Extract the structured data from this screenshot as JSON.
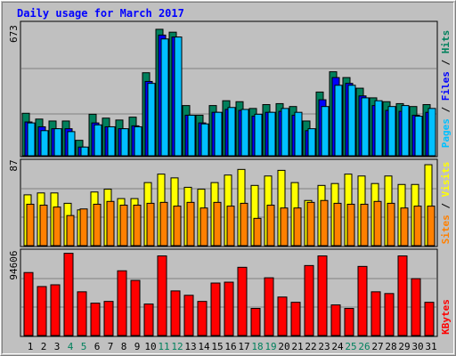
{
  "title": "Daily usage for March 2017",
  "panels": {
    "top": {
      "max_label": "673",
      "legend": [
        "Pages",
        "Files",
        "Hits"
      ]
    },
    "middle": {
      "max_label": "87",
      "legend": [
        "Sites",
        "Visits"
      ]
    },
    "bottom": {
      "max_label": "94606",
      "legend": [
        "KBytes"
      ]
    }
  },
  "colors": {
    "background": "#C0C0C0",
    "title": "#0000FF",
    "hits": "#00805C",
    "files": "#0000FF",
    "pages": "#00C0FF",
    "visits": "#FFFF00",
    "sites": "#FF8000",
    "kbytes": "#FF0000",
    "weekend_label": "#00805C"
  },
  "chart_data": [
    {
      "type": "bar",
      "categories": [
        "1",
        "2",
        "3",
        "4",
        "5",
        "6",
        "7",
        "8",
        "9",
        "10",
        "11",
        "12",
        "13",
        "14",
        "15",
        "16",
        "17",
        "18",
        "19",
        "20",
        "21",
        "22",
        "23",
        "24",
        "25",
        "26",
        "27",
        "28",
        "29",
        "30",
        "31"
      ],
      "weekend_days": [
        4,
        5,
        11,
        12,
        18,
        19,
        25,
        26
      ],
      "ylabel": "Pages / Files / Hits",
      "ylim": [
        0,
        673
      ],
      "series": [
        {
          "name": "Hits",
          "values": [
            220,
            190,
            180,
            180,
            80,
            215,
            195,
            185,
            200,
            430,
            655,
            640,
            260,
            210,
            260,
            285,
            280,
            245,
            265,
            270,
            255,
            180,
            330,
            435,
            405,
            350,
            300,
            280,
            270,
            255,
            265
          ]
        },
        {
          "name": "Files",
          "values": [
            175,
            150,
            140,
            140,
            45,
            170,
            150,
            140,
            155,
            385,
            625,
            615,
            210,
            170,
            225,
            240,
            235,
            205,
            225,
            230,
            210,
            130,
            290,
            405,
            375,
            310,
            260,
            235,
            230,
            210,
            225
          ]
        },
        {
          "name": "Pages",
          "values": [
            170,
            130,
            140,
            125,
            45,
            160,
            150,
            140,
            150,
            375,
            605,
            615,
            210,
            165,
            225,
            250,
            240,
            215,
            225,
            245,
            225,
            140,
            255,
            365,
            365,
            300,
            285,
            255,
            260,
            205,
            245
          ]
        }
      ]
    },
    {
      "type": "bar",
      "categories": [
        "1",
        "2",
        "3",
        "4",
        "5",
        "6",
        "7",
        "8",
        "9",
        "10",
        "11",
        "12",
        "13",
        "14",
        "15",
        "16",
        "17",
        "18",
        "19",
        "20",
        "21",
        "22",
        "23",
        "24",
        "25",
        "26",
        "27",
        "28",
        "29",
        "30",
        "31"
      ],
      "ylabel": "Sites / Visits",
      "ylim": [
        0,
        87
      ],
      "series": [
        {
          "name": "Visits",
          "values": [
            54,
            56,
            56,
            45,
            38,
            57,
            60,
            50,
            50,
            67,
            76,
            72,
            62,
            60,
            67,
            75,
            81,
            64,
            74,
            80,
            67,
            48,
            64,
            66,
            76,
            74,
            66,
            74,
            65,
            65,
            86
          ]
        },
        {
          "name": "Sites",
          "values": [
            44,
            43,
            41,
            32,
            39,
            44,
            47,
            43,
            43,
            45,
            46,
            42,
            46,
            40,
            46,
            42,
            45,
            29,
            43,
            40,
            40,
            46,
            48,
            45,
            44,
            44,
            47,
            45,
            40,
            42,
            42
          ]
        }
      ]
    },
    {
      "type": "bar",
      "categories": [
        "1",
        "2",
        "3",
        "4",
        "5",
        "6",
        "7",
        "8",
        "9",
        "10",
        "11",
        "12",
        "13",
        "14",
        "15",
        "16",
        "17",
        "18",
        "19",
        "20",
        "21",
        "22",
        "23",
        "24",
        "25",
        "26",
        "27",
        "28",
        "29",
        "30",
        "31"
      ],
      "ylabel": "KBytes",
      "ylim": [
        0,
        94606
      ],
      "series": [
        {
          "name": "KBytes",
          "values": [
            72000,
            56000,
            58000,
            94000,
            50000,
            37000,
            39000,
            74000,
            63000,
            36000,
            91000,
            51000,
            46000,
            39000,
            60000,
            61000,
            78000,
            31000,
            66000,
            44000,
            38000,
            80000,
            91000,
            35000,
            31000,
            79000,
            50000,
            48000,
            91000,
            65000,
            38000
          ]
        }
      ]
    }
  ]
}
